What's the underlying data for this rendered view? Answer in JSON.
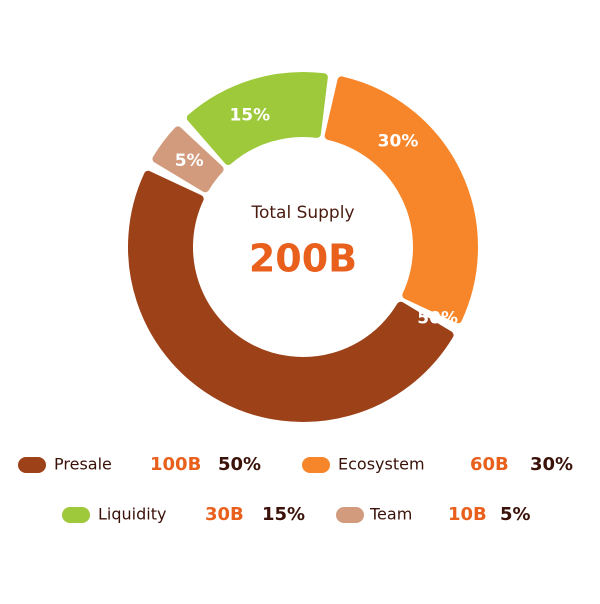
{
  "chart_data": {
    "type": "donut",
    "center_title": "Total Supply",
    "center_value": "200B",
    "categories": [
      "Presale",
      "Ecosystem",
      "Liquidity",
      "Team"
    ],
    "values": [
      50,
      30,
      15,
      5
    ],
    "value_labels": [
      "50%",
      "30%",
      "15%",
      "5%"
    ],
    "amounts": [
      "100B",
      "60B",
      "30B",
      "10B"
    ],
    "colors": [
      "#9c4118",
      "#f7862a",
      "#9dc93a",
      "#d29b7d"
    ]
  }
}
